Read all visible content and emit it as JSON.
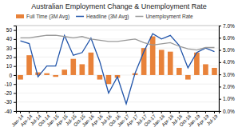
{
  "chart_data": {
    "type": "bar",
    "title": "Australian Employment Change & Unemployment Rate",
    "categories": [
      "Jan-14",
      "Apr-14",
      "Jul-14",
      "Oct-14",
      "Jan-15",
      "Apr-15",
      "Jul-15",
      "Oct-15",
      "Jan-16",
      "Apr-16",
      "Jul-16",
      "Oct-16",
      "Jan-17",
      "Apr-17",
      "Jul-17",
      "Oct-17",
      "Jan-18",
      "Apr-18",
      "Jul-18",
      "Oct-18",
      "Jan-19",
      "Apr-19",
      "Jul-19"
    ],
    "series": [
      {
        "name": "Full Time (3M Avg)",
        "type": "bar",
        "color": "#E8823A",
        "values": [
          -5,
          22,
          3,
          2,
          -2,
          6,
          18,
          12,
          25,
          -5,
          -10,
          -3,
          0,
          2,
          30,
          43,
          28,
          26,
          8,
          -5,
          25,
          12,
          8
        ]
      },
      {
        "name": "Headline (3M Avg)",
        "type": "line",
        "color": "#2255AA",
        "values": [
          38,
          35,
          -2,
          10,
          10,
          44,
          22,
          25,
          41,
          15,
          -20,
          -2,
          -32,
          2,
          26,
          46,
          40,
          44,
          33,
          8,
          25,
          30,
          26
        ]
      },
      {
        "name": "Unemployment Rate",
        "type": "line",
        "color": "#999999",
        "axis": "y2",
        "values": [
          6.0,
          6.0,
          6.1,
          6.2,
          6.2,
          6.1,
          6.0,
          6.1,
          5.9,
          5.8,
          5.7,
          5.7,
          5.8,
          5.9,
          5.6,
          5.4,
          5.5,
          5.6,
          5.3,
          5.1,
          5.0,
          5.2,
          5.2
        ]
      }
    ],
    "ylim": [
      -40,
      55
    ],
    "yticks": [
      -40,
      -30,
      -20,
      -10,
      0,
      10,
      20,
      30,
      40,
      50
    ],
    "y2lim": [
      0.0,
      7.0
    ],
    "y2ticks": [
      {
        "value": 0.0,
        "label": "0.0%"
      },
      {
        "value": 1.0,
        "label": "1.0%"
      },
      {
        "value": 2.0,
        "label": "2.0%"
      },
      {
        "value": 3.0,
        "label": "3.0%"
      },
      {
        "value": 4.0,
        "label": "4.0%"
      },
      {
        "value": 5.0,
        "label": "5.0%"
      },
      {
        "value": 6.0,
        "label": "6.0%"
      },
      {
        "value": 7.0,
        "label": "7.0%"
      }
    ],
    "grid": true,
    "legend": "top-left"
  }
}
